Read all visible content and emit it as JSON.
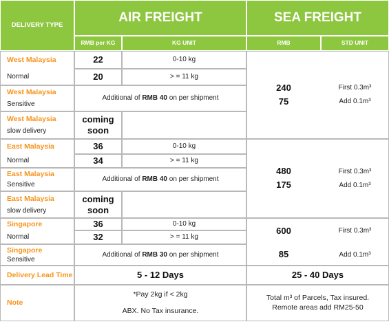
{
  "header": {
    "delivery_type": "DELIVERY TYPE",
    "air_freight": "AIR FREIGHT",
    "sea_freight": "SEA FREIGHT"
  },
  "subheader": {
    "rmb_per_kg": "RMB per KG",
    "kg_unit": "KG UNIT",
    "rmb": "RMB",
    "std_unit": "STD UNIT"
  },
  "regions": [
    {
      "name": "West Malaysia",
      "normal": "Normal",
      "rates": [
        {
          "price": 22,
          "unit": "0-10 kg"
        },
        {
          "price": 20,
          "unit": "> = 11 kg"
        }
      ],
      "sensitive_name": "West Malaysia",
      "sensitive": "Sensitive",
      "surcharge": [
        "Additional of ",
        "RMB 40",
        " on per shipment"
      ],
      "slow_name": "West Malaysia",
      "slow": "slow delivery",
      "slow_price": "coming soon",
      "sea": {
        "prices": [
          240,
          75
        ],
        "units": [
          "First 0.3m³",
          "Add 0.1m³"
        ]
      }
    },
    {
      "name": "East Malaysia",
      "normal": "Normal",
      "rates": [
        {
          "price": 36,
          "unit": "0-10 kg"
        },
        {
          "price": 34,
          "unit": "> = 11 kg"
        }
      ],
      "sensitive_name": "East Malaysia",
      "sensitive": "Sensitive",
      "surcharge": [
        "Additional of ",
        "RMB 40",
        " on per shipment"
      ],
      "slow_name": "East Malaysia",
      "slow": "slow delivery",
      "slow_price": "coming soon",
      "sea": {
        "prices": [
          480,
          175
        ],
        "units": [
          "First 0.3m³",
          "Add 0.1m³"
        ]
      }
    },
    {
      "name": "Singapore",
      "normal": "Normal",
      "rates": [
        {
          "price": 36,
          "unit": "0-10 kg"
        },
        {
          "price": 32,
          "unit": "> = 11 kg"
        }
      ],
      "sensitive_name": "Singapore",
      "sensitive": "Sensitive",
      "surcharge": [
        "Additional of ",
        "RMB 30",
        " on per shipment"
      ],
      "sea": {
        "prices": [
          600,
          85
        ],
        "units": [
          "First 0.3m³",
          "Add 0.1m³"
        ]
      }
    }
  ],
  "lead_time": {
    "label": "Delivery Lead Time",
    "air": "5 - 12 Days",
    "sea": "25 - 40 Days"
  },
  "note": {
    "label": "Note",
    "air": [
      "*Pay 2kg if < 2kg",
      "ABX. No Tax insurance."
    ],
    "sea": [
      "Total m³ of Parcels, Tax insured.",
      "Remote areas add RM25-50"
    ]
  }
}
